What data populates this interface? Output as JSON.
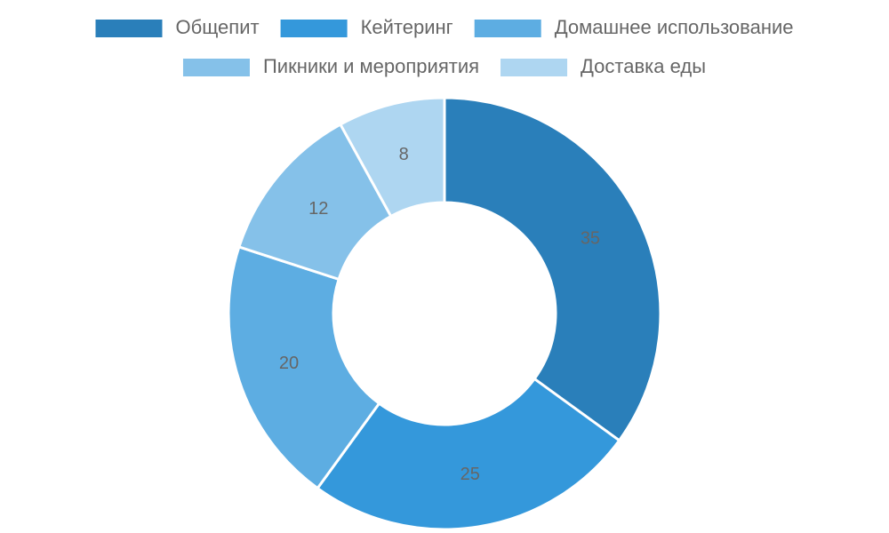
{
  "chart_data": {
    "type": "donut",
    "categories": [
      "Общепит",
      "Кейтеринг",
      "Домашнее использование",
      "Пикники и мероприятия",
      "Доставка еды"
    ],
    "values": [
      35,
      25,
      20,
      12,
      8
    ],
    "colors": [
      "#2a7fba",
      "#3498db",
      "#5dade2",
      "#85c1e9",
      "#aed6f1"
    ],
    "legend": "top"
  }
}
